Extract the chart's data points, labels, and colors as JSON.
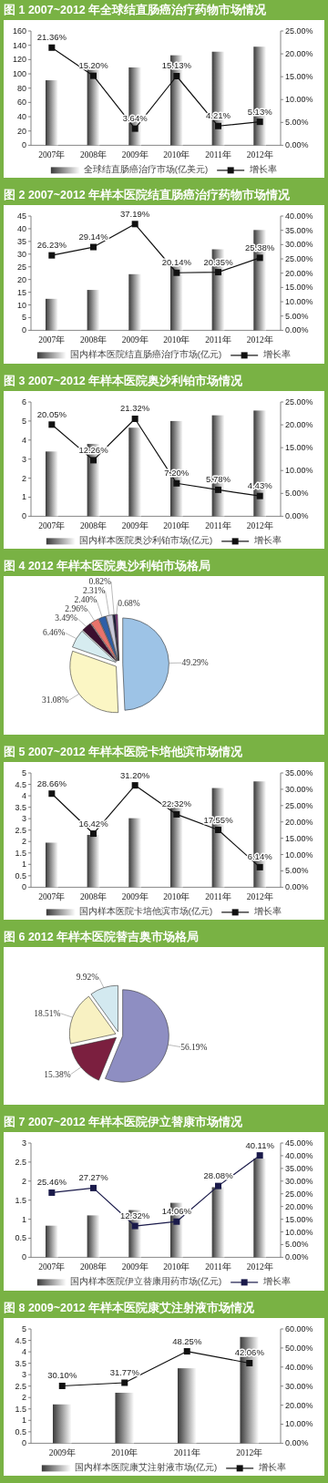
{
  "chart_data": [
    {
      "type": "bar",
      "title": "图 1 2007~2012 年全球结直肠癌治疗药物市场情况",
      "categories": [
        "2007年",
        "2008年",
        "2009年",
        "2010年",
        "2011年",
        "2012年"
      ],
      "series": [
        {
          "name": "全球结直肠癌治疗市场(亿美元)",
          "type": "bar",
          "color": "#3a3a3a",
          "values": [
            91,
            106,
            109,
            126,
            131,
            138
          ]
        },
        {
          "name": "增长率",
          "type": "line",
          "axis": "y2",
          "color": "#111111",
          "values": [
            21.36,
            15.2,
            3.64,
            15.13,
            4.21,
            5.13
          ],
          "value_labels": [
            "21.36%",
            "15.20%",
            "3.64%",
            "15.13%",
            "4.21%",
            "5.13%"
          ]
        }
      ],
      "ylim": [
        0,
        160
      ],
      "yticks": [
        0,
        20,
        40,
        60,
        80,
        100,
        120,
        140,
        160
      ],
      "y2lim": [
        0,
        25
      ],
      "y2ticks": [
        {
          "value": 0,
          "label": "0.00%"
        },
        {
          "value": 5,
          "label": "5.00%"
        },
        {
          "value": 10,
          "label": "10.00%"
        },
        {
          "value": 15,
          "label": "15.00%"
        },
        {
          "value": 20,
          "label": "20.00%"
        },
        {
          "value": 25,
          "label": "25.00%"
        }
      ],
      "legend": "bottom",
      "marker": "square"
    },
    {
      "type": "bar",
      "title": "图 2 2007~2012 年样本医院结直肠癌治疗药物市场情况",
      "categories": [
        "2007年",
        "2008年",
        "2009年",
        "2010年",
        "2011年",
        "2012年"
      ],
      "series": [
        {
          "name": "国内样本医院结直肠癌治疗市场(亿元)",
          "type": "bar",
          "color": "#3a3a3a",
          "values": [
            12.4,
            15.9,
            22.1,
            26.2,
            31.9,
            39.5
          ]
        },
        {
          "name": "增长率",
          "type": "line",
          "axis": "y2",
          "color": "#111111",
          "values": [
            26.23,
            29.14,
            37.19,
            20.14,
            20.35,
            25.38
          ],
          "value_labels": [
            "26.23%",
            "29.14%",
            "37.19%",
            "20.14%",
            "20.35%",
            "25.38%"
          ]
        }
      ],
      "ylim": [
        0,
        45
      ],
      "yticks": [
        0,
        5,
        10,
        15,
        20,
        25,
        30,
        35,
        40,
        45
      ],
      "y2lim": [
        0,
        40
      ],
      "y2ticks": [
        {
          "value": 0,
          "label": "0.00%"
        },
        {
          "value": 5,
          "label": "5.00%"
        },
        {
          "value": 10,
          "label": "10.00%"
        },
        {
          "value": 15,
          "label": "15.00%"
        },
        {
          "value": 20,
          "label": "20.00%"
        },
        {
          "value": 25,
          "label": "25.00%"
        },
        {
          "value": 30,
          "label": "30.00%"
        },
        {
          "value": 35,
          "label": "35.00%"
        },
        {
          "value": 40,
          "label": "40.00%"
        }
      ],
      "legend": "bottom",
      "marker": "square"
    },
    {
      "type": "bar",
      "title": "图 3 2007~2012 年样本医院奥沙利铂市场情况",
      "categories": [
        "2007年",
        "2008年",
        "2009年",
        "2010年",
        "2011年",
        "2012年"
      ],
      "series": [
        {
          "name": "国内样本医院奥沙利铂市场(亿元)",
          "type": "bar",
          "color": "#3a3a3a",
          "values": [
            3.4,
            3.8,
            4.65,
            5.0,
            5.3,
            5.55
          ]
        },
        {
          "name": "增长率",
          "type": "line",
          "axis": "y2",
          "color": "#111111",
          "values": [
            20.05,
            12.26,
            21.32,
            7.2,
            5.78,
            4.43
          ],
          "value_labels": [
            "20.05%",
            "12.26%",
            "21.32%",
            "7.20%",
            "5.78%",
            "4.43%"
          ]
        }
      ],
      "ylim": [
        0,
        6
      ],
      "yticks": [
        0,
        1,
        2,
        3,
        4,
        5,
        6
      ],
      "y2lim": [
        0,
        25
      ],
      "y2ticks": [
        {
          "value": 0,
          "label": "0.00%"
        },
        {
          "value": 5,
          "label": "5.00%"
        },
        {
          "value": 10,
          "label": "10.00%"
        },
        {
          "value": 15,
          "label": "15.00%"
        },
        {
          "value": 20,
          "label": "20.00%"
        },
        {
          "value": 25,
          "label": "25.00%"
        }
      ],
      "legend": "bottom",
      "marker": "square"
    },
    {
      "type": "pie",
      "title": "图 4 2012 年样本医院奥沙利铂市场格局",
      "categories": [
        null,
        null,
        null,
        null,
        null,
        null,
        null,
        null,
        null
      ],
      "values": [
        49.29,
        31.08,
        6.46,
        3.49,
        2.96,
        2.4,
        2.31,
        0.82,
        0.68
      ],
      "colors": [
        "#9dc3e6",
        "#fbf6c4",
        "#d6ecf0",
        "#3b0f2e",
        "#e8736b",
        "#2e5fa8",
        "#c9c9d9",
        "#17173a",
        "#8b3a8b"
      ],
      "value_labels": [
        "49.29%",
        "31.08%",
        "6.46%",
        "3.49%",
        "2.96%",
        "2.40%",
        "2.31%",
        "0.82%",
        "0.68%"
      ]
    },
    {
      "type": "bar",
      "title": "图 5 2007~2012 年样本医院卡培他滨市场情况",
      "categories": [
        "2007年",
        "2008年",
        "2009年",
        "2010年",
        "2011年",
        "2012年"
      ],
      "series": [
        {
          "name": "国内样本医院卡培他滨市场(亿元)",
          "type": "bar",
          "color": "#3a3a3a",
          "values": [
            1.95,
            2.29,
            3.02,
            3.72,
            4.34,
            4.63
          ]
        },
        {
          "name": "增长率",
          "type": "line",
          "axis": "y2",
          "color": "#111111",
          "values": [
            28.66,
            16.42,
            31.2,
            22.32,
            17.55,
            6.14
          ],
          "value_labels": [
            "28.66%",
            "16.42%",
            "31.20%",
            "22.32%",
            "17.55%",
            "6.14%"
          ]
        }
      ],
      "ylim": [
        0,
        5
      ],
      "yticks": [
        0,
        0.5,
        1,
        1.5,
        2,
        2.5,
        3,
        3.5,
        4,
        4.5,
        5
      ],
      "y2lim": [
        0,
        35
      ],
      "y2ticks": [
        {
          "value": 0,
          "label": "0.00%"
        },
        {
          "value": 5,
          "label": "5.00%"
        },
        {
          "value": 10,
          "label": "10.00%"
        },
        {
          "value": 15,
          "label": "15.00%"
        },
        {
          "value": 20,
          "label": "20.00%"
        },
        {
          "value": 25,
          "label": "25.00%"
        },
        {
          "value": 30,
          "label": "30.00%"
        },
        {
          "value": 35,
          "label": "35.00%"
        }
      ],
      "legend": "bottom",
      "marker": "square"
    },
    {
      "type": "pie",
      "title": "图 6 2012 年样本医院替吉奥市场格局",
      "categories": [
        null,
        null,
        null,
        null
      ],
      "values": [
        56.19,
        15.38,
        18.51,
        9.92
      ],
      "colors": [
        "#8e8ec2",
        "#7b1f3f",
        "#f8f1c2",
        "#d3e9f0"
      ],
      "value_labels": [
        "56.19%",
        "15.38%",
        "18.51%",
        "9.92%"
      ]
    },
    {
      "type": "bar",
      "title": "图 7 2007~2012 年样本医院伊立替康市场情况",
      "categories": [
        "2007年",
        "2008年",
        "2009年",
        "2010年",
        "2011年",
        "2012年"
      ],
      "series": [
        {
          "name": "国内样本医院伊立替康用药市场(亿元)",
          "type": "bar",
          "color": "#3a3a3a",
          "values": [
            0.83,
            1.1,
            1.24,
            1.43,
            1.84,
            2.59
          ]
        },
        {
          "name": "增长率",
          "type": "line",
          "axis": "y2",
          "color": "#1a1a4a",
          "values": [
            25.46,
            27.27,
            12.32,
            14.06,
            28.08,
            40.11
          ],
          "value_labels": [
            "25.46%",
            "27.27%",
            "12.32%",
            "14.06%",
            "28.08%",
            "40.11%"
          ]
        }
      ],
      "ylim": [
        0,
        3
      ],
      "yticks": [
        0,
        0.5,
        1,
        1.5,
        2,
        2.5,
        3
      ],
      "y2lim": [
        0,
        45
      ],
      "y2ticks": [
        {
          "value": 0,
          "label": "0.00%"
        },
        {
          "value": 5,
          "label": "5.00%"
        },
        {
          "value": 10,
          "label": "10.00%"
        },
        {
          "value": 15,
          "label": "15.00%"
        },
        {
          "value": 20,
          "label": "20.00%"
        },
        {
          "value": 25,
          "label": "25.00%"
        },
        {
          "value": 30,
          "label": "30.00%"
        },
        {
          "value": 35,
          "label": "35.00%"
        },
        {
          "value": 40,
          "label": "40.00%"
        },
        {
          "value": 45,
          "label": "45.00%"
        }
      ],
      "legend": "bottom",
      "marker": "square"
    },
    {
      "type": "bar",
      "title": "图 8 2009~2012 年样本医院康艾注射液市场情况",
      "categories": [
        "2009年",
        "2010年",
        "2011年",
        "2012年"
      ],
      "series": [
        {
          "name": "国内样本医院康艾注射液市场(亿元)",
          "type": "bar",
          "color": "#3a3a3a",
          "values": [
            1.7,
            2.21,
            3.28,
            4.65
          ]
        },
        {
          "name": "增长率",
          "type": "line",
          "axis": "y2",
          "color": "#111111",
          "values": [
            30.1,
            31.77,
            48.25,
            42.06
          ],
          "value_labels": [
            "30.10%",
            "31.77%",
            "48.25%",
            "42.06%"
          ]
        }
      ],
      "ylim": [
        0,
        5
      ],
      "yticks": [
        0,
        0.5,
        1,
        1.5,
        2,
        2.5,
        3,
        3.5,
        4,
        4.5,
        5
      ],
      "y2lim": [
        0,
        60
      ],
      "y2ticks": [
        {
          "value": 0,
          "label": "0.00%"
        },
        {
          "value": 10,
          "label": "10.00%"
        },
        {
          "value": 20,
          "label": "20.00%"
        },
        {
          "value": 30,
          "label": "30.00%"
        },
        {
          "value": 40,
          "label": "40.00%"
        },
        {
          "value": 50,
          "label": "50.00%"
        },
        {
          "value": 60,
          "label": "60.00%"
        }
      ],
      "legend": "bottom",
      "marker": "square"
    }
  ]
}
